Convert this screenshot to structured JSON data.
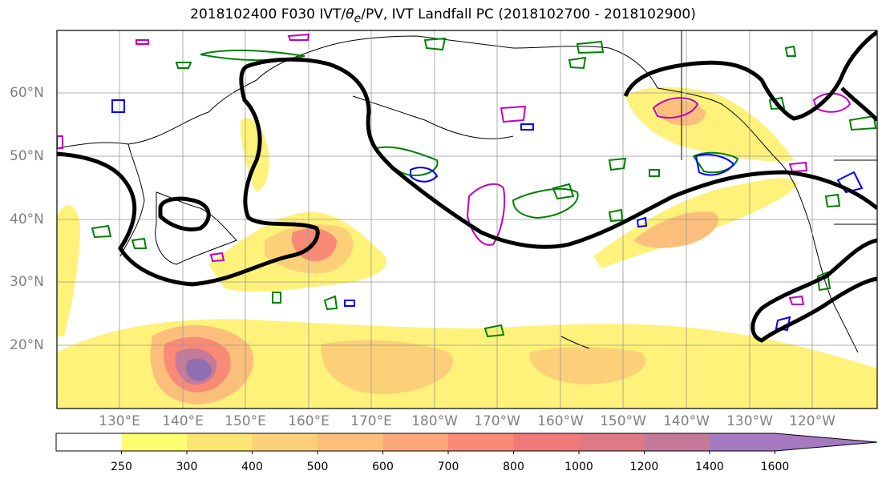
{
  "title_prefix": "2018102400 F030 IVT/",
  "title_theta": "θ",
  "title_e": "e",
  "title_suffix": "/PV, IVT Landfall PC (2018102700 - 2018102900)",
  "lat_labels": [
    "60°N",
    "50°N",
    "40°N",
    "30°N",
    "20°N"
  ],
  "lon_labels": [
    "130°E",
    "140°E",
    "150°E",
    "160°E",
    "170°E",
    "180°W",
    "170°W",
    "160°W",
    "150°W",
    "140°W",
    "130°W",
    "120°W"
  ],
  "colorbar": {
    "ticks": [
      "250",
      "300",
      "400",
      "500",
      "600",
      "700",
      "800",
      "1000",
      "1200",
      "1400",
      "1600"
    ],
    "colors": [
      "#fefe70",
      "#fce573",
      "#fbd078",
      "#fbbf7b",
      "#fba77a",
      "#f98a76",
      "#f07a78",
      "#dd7a85",
      "#c57a99",
      "#a679c2"
    ],
    "extend": "max"
  },
  "colors": {
    "ivt_low": "#fef27a",
    "ivt_mid": "#fbbf7b",
    "ivt_high": "#f07a78",
    "ivt_peak": "#8e6fb0",
    "landfall_pc": "#000000",
    "pv_positive": "#008000",
    "pv_negative": "#0000ff",
    "theta_e": "#c000c0"
  }
}
